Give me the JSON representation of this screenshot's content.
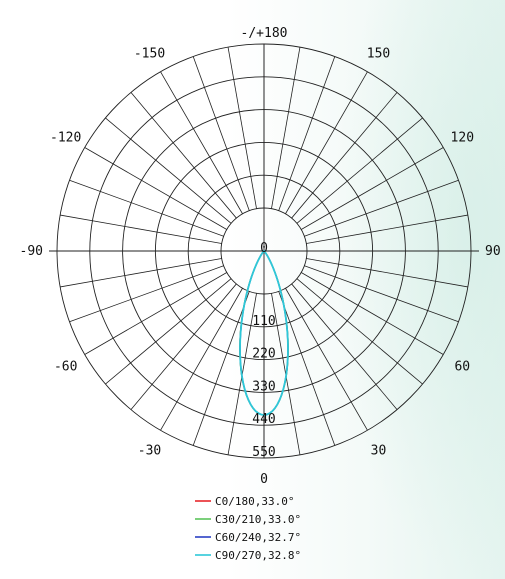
{
  "chart_data": {
    "type": "polar-line",
    "angle_labels": [
      {
        "deg": 180,
        "text": "-/+180"
      },
      {
        "deg": -150,
        "text": "-150"
      },
      {
        "deg": 150,
        "text": "150"
      },
      {
        "deg": -120,
        "text": "-120"
      },
      {
        "deg": 120,
        "text": "120"
      },
      {
        "deg": -90,
        "text": "-90"
      },
      {
        "deg": 90,
        "text": "90"
      },
      {
        "deg": -60,
        "text": "-60"
      },
      {
        "deg": 60,
        "text": "60"
      },
      {
        "deg": -30,
        "text": "-30"
      },
      {
        "deg": 30,
        "text": "30"
      },
      {
        "deg": 0,
        "text": "0"
      }
    ],
    "angle_grid_step_deg": 10,
    "radial_ticks": [
      0,
      110,
      220,
      330,
      440,
      550
    ],
    "radial_max": 550,
    "grid": true,
    "legend_position": "bottom",
    "series": [
      {
        "name": "C0/180,33.0°",
        "color": "#e8262c",
        "beam_angle_deg": 33.0,
        "peak": 550
      },
      {
        "name": "C30/210,33.0°",
        "color": "#5cc45c",
        "beam_angle_deg": 33.0,
        "peak": 550
      },
      {
        "name": "C60/240,32.7°",
        "color": "#2a3fc4",
        "beam_angle_deg": 32.7,
        "peak": 550
      },
      {
        "name": "C90/270,32.8°",
        "color": "#2ec8d8",
        "beam_angle_deg": 32.8,
        "peak": 550
      }
    ]
  }
}
